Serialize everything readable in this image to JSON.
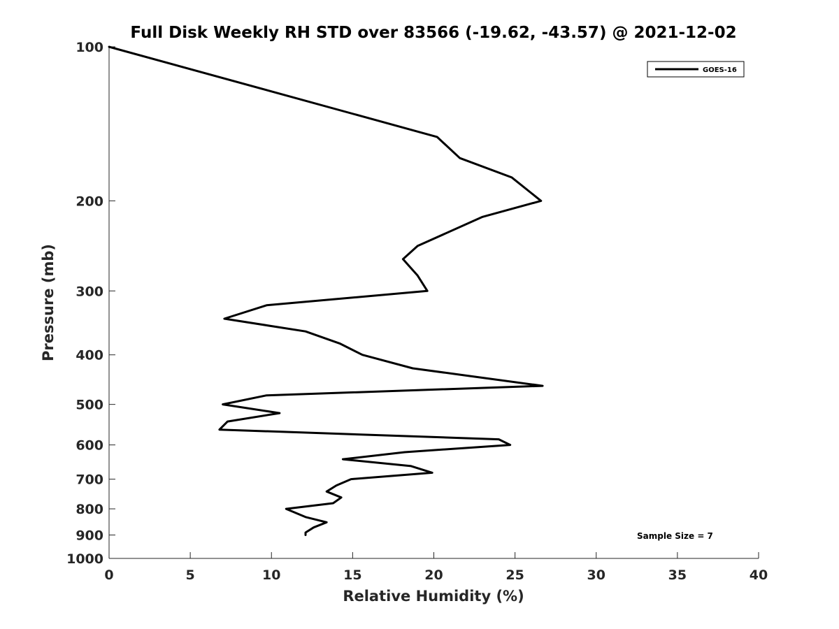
{
  "chart_data": {
    "type": "line",
    "title": "Full Disk Weekly RH STD over 83566 (-19.62, -43.57) @ 2021-12-02",
    "xlabel": "Relative Humidity (%)",
    "ylabel": "Pressure (mb)",
    "xlim": [
      0,
      40
    ],
    "ylim": [
      100,
      1000
    ],
    "y_scale": "log",
    "y_reversed": true,
    "x_ticks": [
      0,
      5,
      10,
      15,
      20,
      25,
      30,
      35,
      40
    ],
    "y_ticks": [
      100,
      200,
      300,
      400,
      500,
      600,
      700,
      800,
      900,
      1000
    ],
    "grid": false,
    "legend_position": "top-right",
    "annotation": "Sample Size = 7",
    "series": [
      {
        "name": "GOES-16",
        "color": "#000000",
        "points": [
          {
            "pressure": 100,
            "rh": 0.0
          },
          {
            "pressure": 150,
            "rh": 20.2
          },
          {
            "pressure": 165,
            "rh": 21.6
          },
          {
            "pressure": 180,
            "rh": 24.8
          },
          {
            "pressure": 200,
            "rh": 26.6
          },
          {
            "pressure": 215,
            "rh": 23.0
          },
          {
            "pressure": 245,
            "rh": 19.0
          },
          {
            "pressure": 260,
            "rh": 18.1
          },
          {
            "pressure": 280,
            "rh": 19.0
          },
          {
            "pressure": 300,
            "rh": 19.6
          },
          {
            "pressure": 320,
            "rh": 9.7
          },
          {
            "pressure": 340,
            "rh": 7.1
          },
          {
            "pressure": 360,
            "rh": 12.1
          },
          {
            "pressure": 380,
            "rh": 14.2
          },
          {
            "pressure": 400,
            "rh": 15.6
          },
          {
            "pressure": 425,
            "rh": 18.7
          },
          {
            "pressure": 440,
            "rh": 22.2
          },
          {
            "pressure": 460,
            "rh": 26.7
          },
          {
            "pressure": 480,
            "rh": 9.7
          },
          {
            "pressure": 500,
            "rh": 7.0
          },
          {
            "pressure": 520,
            "rh": 10.5
          },
          {
            "pressure": 540,
            "rh": 7.3
          },
          {
            "pressure": 560,
            "rh": 6.8
          },
          {
            "pressure": 585,
            "rh": 24.0
          },
          {
            "pressure": 600,
            "rh": 24.7
          },
          {
            "pressure": 620,
            "rh": 18.2
          },
          {
            "pressure": 640,
            "rh": 14.4
          },
          {
            "pressure": 660,
            "rh": 18.6
          },
          {
            "pressure": 680,
            "rh": 19.9
          },
          {
            "pressure": 700,
            "rh": 14.9
          },
          {
            "pressure": 720,
            "rh": 14.0
          },
          {
            "pressure": 740,
            "rh": 13.4
          },
          {
            "pressure": 760,
            "rh": 14.3
          },
          {
            "pressure": 780,
            "rh": 13.8
          },
          {
            "pressure": 800,
            "rh": 10.9
          },
          {
            "pressure": 830,
            "rh": 12.1
          },
          {
            "pressure": 850,
            "rh": 13.4
          },
          {
            "pressure": 870,
            "rh": 12.6
          },
          {
            "pressure": 890,
            "rh": 12.1
          },
          {
            "pressure": 900,
            "rh": 12.1
          }
        ]
      }
    ]
  }
}
